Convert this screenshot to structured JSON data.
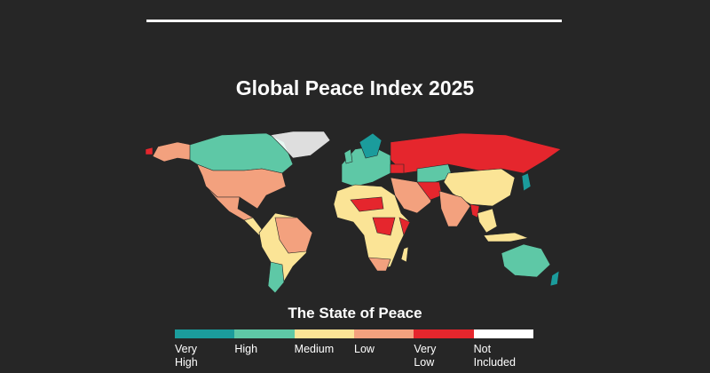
{
  "title": "Global Peace Index 2025",
  "legend": {
    "title": "The State of Peace",
    "items": [
      {
        "label": "Very High",
        "color": "#1b9c9c"
      },
      {
        "label": "High",
        "color": "#5ec8a6"
      },
      {
        "label": "Medium",
        "color": "#fbe496"
      },
      {
        "label": "Low",
        "color": "#f3a17e"
      },
      {
        "label": "Very Low",
        "color": "#e5262d"
      },
      {
        "label": "Not Included",
        "color": "#ffffff"
      }
    ]
  }
}
